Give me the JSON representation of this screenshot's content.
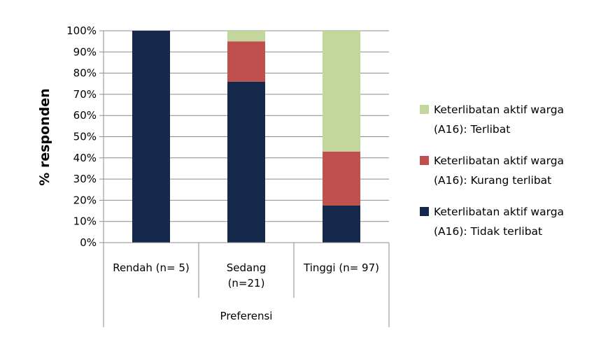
{
  "chart_data": {
    "type": "bar",
    "stacked": true,
    "percent": true,
    "title": "",
    "ylabel": "% responden",
    "xlabel": "Preferensi",
    "ylim": [
      0,
      100
    ],
    "yticks": [
      "0%",
      "10%",
      "20%",
      "30%",
      "40%",
      "50%",
      "60%",
      "70%",
      "80%",
      "90%",
      "100%"
    ],
    "grid": true,
    "legend_position": "right",
    "categories": [
      [
        "Rendah (n= 5)"
      ],
      [
        "Sedang",
        "(n=21)"
      ],
      [
        "Tinggi (n= 97)"
      ]
    ],
    "series": [
      {
        "name": [
          "Keterlibatan aktif warga",
          "(A16):  Tidak terlibat"
        ],
        "color": "#13284a",
        "values": [
          100,
          76,
          17.5
        ]
      },
      {
        "name": [
          "Keterlibatan aktif warga",
          "(A16):  Kurang terlibat"
        ],
        "color": "#c0504d",
        "values": [
          0,
          19,
          25.5
        ]
      },
      {
        "name": [
          "Keterlibatan aktif warga",
          "(A16):  Terlibat"
        ],
        "color": "#c3d69b",
        "values": [
          0,
          5,
          57
        ]
      }
    ]
  }
}
